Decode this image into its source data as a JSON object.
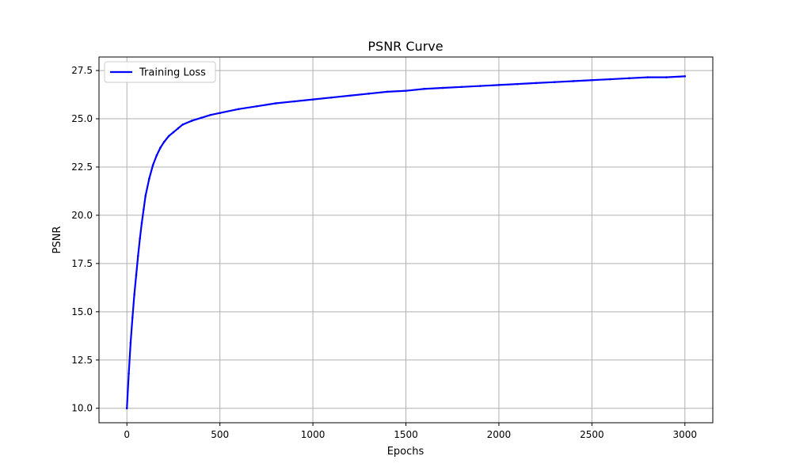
{
  "chart_data": {
    "type": "line",
    "title": "PSNR Curve",
    "xlabel": "Epochs",
    "ylabel": "PSNR",
    "xlim": [
      -150,
      3150
    ],
    "ylim": [
      9.25,
      28.2
    ],
    "xticks": [
      0,
      500,
      1000,
      1500,
      2000,
      2500,
      3000
    ],
    "yticks": [
      10.0,
      12.5,
      15.0,
      17.5,
      20.0,
      22.5,
      25.0,
      27.5
    ],
    "xtick_labels": [
      "0",
      "500",
      "1000",
      "1500",
      "2000",
      "2500",
      "3000"
    ],
    "ytick_labels": [
      "10.0",
      "12.5",
      "15.0",
      "17.5",
      "20.0",
      "22.5",
      "25.0",
      "27.5"
    ],
    "grid": true,
    "legend": "top-left",
    "series": [
      {
        "name": "Training Loss",
        "color": "#0000ff",
        "x": [
          0,
          10,
          20,
          30,
          40,
          50,
          60,
          70,
          80,
          90,
          100,
          120,
          140,
          160,
          180,
          200,
          225,
          250,
          275,
          300,
          350,
          400,
          450,
          500,
          600,
          700,
          800,
          900,
          1000,
          1100,
          1200,
          1300,
          1400,
          1500,
          1600,
          1700,
          1800,
          1900,
          2000,
          2100,
          2200,
          2300,
          2400,
          2500,
          2600,
          2700,
          2800,
          2900,
          3000
        ],
        "y": [
          10.0,
          11.8,
          13.4,
          14.7,
          15.9,
          16.9,
          17.9,
          18.8,
          19.6,
          20.3,
          21.0,
          21.9,
          22.6,
          23.1,
          23.5,
          23.8,
          24.1,
          24.3,
          24.5,
          24.7,
          24.9,
          25.05,
          25.2,
          25.3,
          25.5,
          25.65,
          25.8,
          25.9,
          26.0,
          26.1,
          26.2,
          26.3,
          26.4,
          26.45,
          26.55,
          26.6,
          26.65,
          26.7,
          26.75,
          26.8,
          26.85,
          26.9,
          26.95,
          27.0,
          27.05,
          27.1,
          27.15,
          27.15,
          27.2
        ]
      }
    ]
  }
}
